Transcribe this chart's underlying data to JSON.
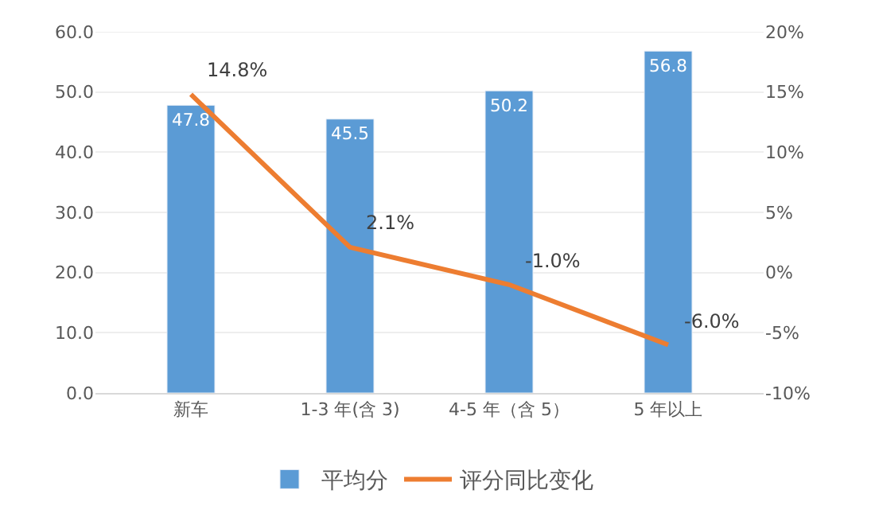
{
  "chart_data": {
    "type": "bar",
    "categories": [
      "新车",
      "1-3 年(含 3)",
      "4-5 年（含 5）",
      "5 年以上"
    ],
    "series": [
      {
        "name": "平均分",
        "color": "#5b9bd5",
        "values": [
          47.8,
          45.5,
          50.2,
          56.8
        ],
        "value_labels": [
          "47.8",
          "45.5",
          "50.2",
          "56.8"
        ]
      },
      {
        "name": "评分同比变化",
        "type": "line",
        "axis": "y2",
        "color": "#ed7d31",
        "values": [
          14.8,
          2.1,
          -1.0,
          -6.0
        ],
        "value_labels": [
          "14.8%",
          "2.1%",
          "-1.0%",
          "-6.0%"
        ]
      }
    ],
    "ylim": [
      0,
      60
    ],
    "yticks": [
      "0.0",
      "10.0",
      "20.0",
      "30.0",
      "40.0",
      "50.0",
      "60.0"
    ],
    "y2lim": [
      -10,
      20
    ],
    "y2ticks": [
      {
        "value": -10,
        "label": "-10%"
      },
      {
        "value": -5,
        "label": "-5%"
      },
      {
        "value": 0,
        "label": "0%"
      },
      {
        "value": 5,
        "label": "5%"
      },
      {
        "value": 10,
        "label": "10%"
      },
      {
        "value": 15,
        "label": "15%"
      },
      {
        "value": 20,
        "label": "20%"
      }
    ],
    "grid": "y",
    "legend": "bottom",
    "marker": "none",
    "line_style": "solid"
  }
}
